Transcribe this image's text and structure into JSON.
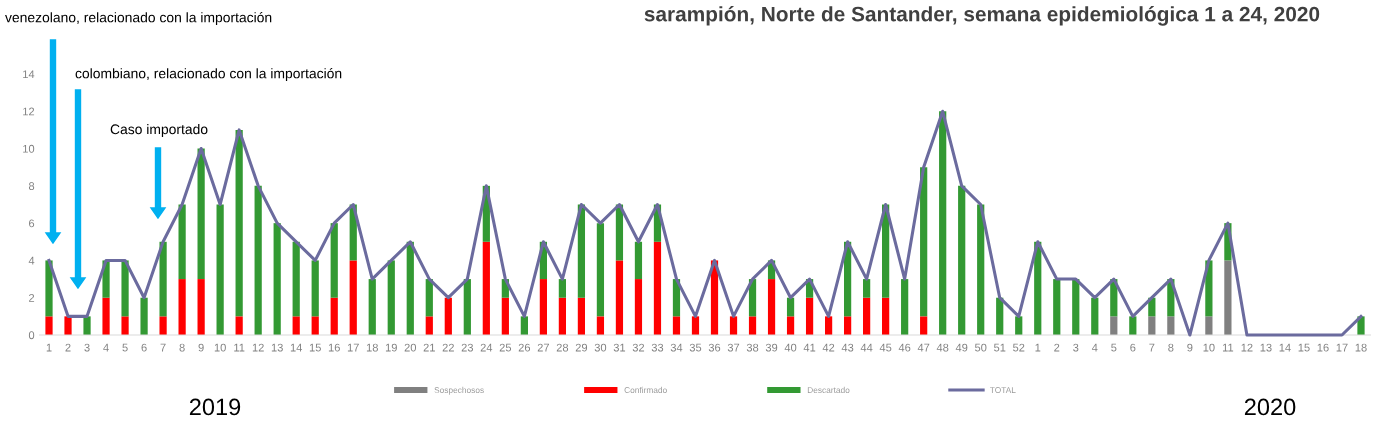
{
  "chart_data": {
    "type": "bar",
    "stacked": true,
    "title": "sarampión, Norte de Santander, semana epidemiológica 1 a 24, 2020",
    "categories": [
      "1",
      "2",
      "3",
      "4",
      "5",
      "6",
      "7",
      "8",
      "9",
      "10",
      "11",
      "12",
      "13",
      "14",
      "15",
      "16",
      "17",
      "18",
      "19",
      "20",
      "21",
      "22",
      "23",
      "24",
      "25",
      "26",
      "27",
      "28",
      "29",
      "30",
      "31",
      "32",
      "33",
      "34",
      "35",
      "36",
      "37",
      "38",
      "39",
      "40",
      "41",
      "42",
      "43",
      "44",
      "45",
      "46",
      "47",
      "48",
      "49",
      "50",
      "51",
      "52",
      "1",
      "2",
      "3",
      "4",
      "5",
      "6",
      "7",
      "8",
      "9",
      "10",
      "11",
      "12",
      "13",
      "14",
      "15",
      "16",
      "17",
      "18"
    ],
    "series": [
      {
        "name": "Sospechosos",
        "color": "#808080",
        "values": [
          0,
          0,
          0,
          0,
          0,
          0,
          0,
          0,
          0,
          0,
          0,
          0,
          0,
          0,
          0,
          0,
          0,
          0,
          0,
          0,
          0,
          0,
          0,
          0,
          0,
          0,
          0,
          0,
          0,
          0,
          0,
          0,
          0,
          0,
          0,
          0,
          0,
          0,
          0,
          0,
          0,
          0,
          0,
          0,
          0,
          0,
          0,
          0,
          0,
          0,
          0,
          0,
          0,
          0,
          0,
          0,
          1,
          0,
          1,
          1,
          0,
          1,
          4,
          0,
          0,
          0,
          0,
          0,
          0,
          0
        ]
      },
      {
        "name": "Confirmado",
        "color": "#ff0000",
        "values": [
          1,
          1,
          0,
          2,
          1,
          0,
          1,
          3,
          3,
          0,
          1,
          0,
          0,
          1,
          1,
          2,
          4,
          0,
          0,
          0,
          1,
          2,
          0,
          5,
          2,
          0,
          3,
          2,
          2,
          1,
          4,
          3,
          5,
          1,
          1,
          4,
          1,
          1,
          3,
          1,
          2,
          1,
          1,
          2,
          2,
          0,
          1,
          0,
          0,
          0,
          0,
          0,
          0,
          0,
          0,
          0,
          0,
          0,
          0,
          0,
          0,
          0,
          0,
          0,
          0,
          0,
          0,
          0,
          0,
          0
        ]
      },
      {
        "name": "Descartado",
        "color": "#339933",
        "values": [
          3,
          0,
          1,
          2,
          3,
          2,
          4,
          4,
          7,
          7,
          10,
          8,
          6,
          4,
          3,
          4,
          3,
          3,
          4,
          5,
          2,
          0,
          3,
          3,
          1,
          1,
          2,
          1,
          5,
          5,
          3,
          2,
          2,
          2,
          0,
          0,
          0,
          2,
          1,
          1,
          1,
          0,
          4,
          1,
          5,
          3,
          8,
          12,
          8,
          7,
          2,
          1,
          5,
          3,
          3,
          2,
          2,
          1,
          1,
          2,
          0,
          3,
          2,
          0,
          0,
          0,
          0,
          0,
          0,
          1
        ]
      },
      {
        "name": "TOTAL",
        "type": "line",
        "color": "#6b6b9e",
        "values": [
          4,
          1,
          1,
          4,
          4,
          2,
          5,
          7,
          10,
          7,
          11,
          8,
          6,
          5,
          4,
          6,
          7,
          3,
          4,
          5,
          3,
          2,
          3,
          8,
          3,
          1,
          5,
          3,
          7,
          6,
          7,
          5,
          7,
          3,
          1,
          4,
          1,
          3,
          4,
          2,
          3,
          1,
          5,
          3,
          7,
          3,
          9,
          12,
          8,
          7,
          2,
          1,
          5,
          3,
          3,
          2,
          3,
          1,
          2,
          3,
          0,
          4,
          6,
          0,
          0,
          0,
          0,
          0,
          0,
          1
        ]
      }
    ],
    "ylim": [
      0,
      14
    ],
    "yticks": [
      0,
      2,
      4,
      6,
      8,
      10,
      12,
      14
    ],
    "grid": false,
    "legend": "bottom",
    "annotations": [
      "venezolano, relacionado con la importación",
      "colombiano, relacionado con la importación",
      "Caso importado",
      "2019",
      "2020"
    ]
  }
}
